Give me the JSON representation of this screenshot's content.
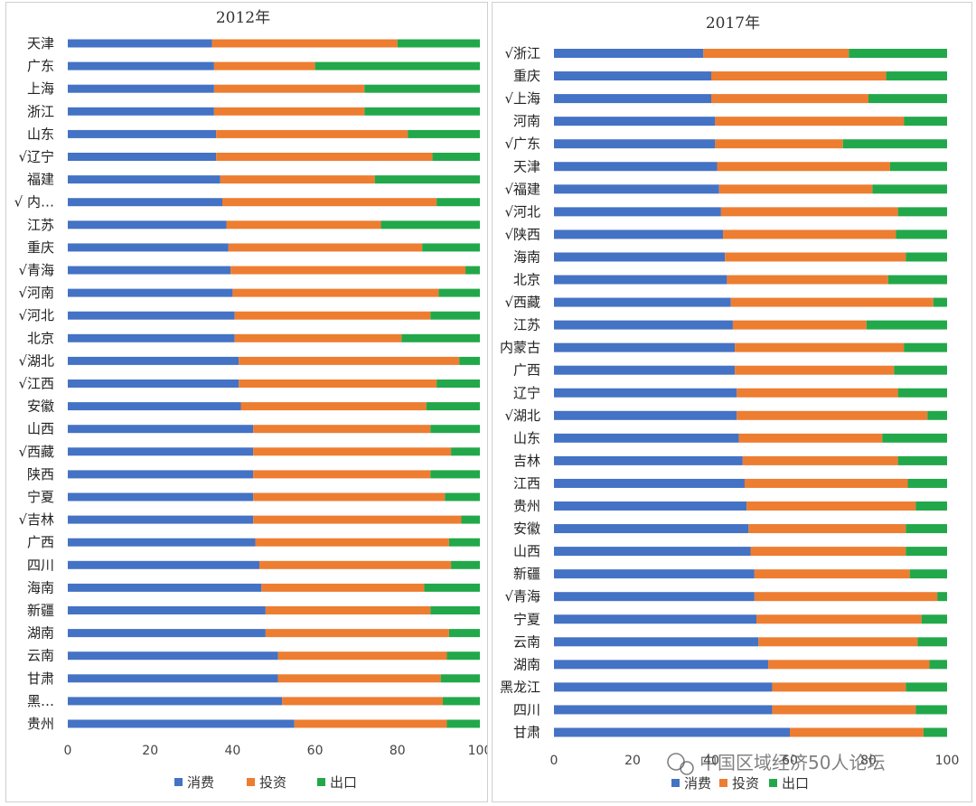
{
  "colors": {
    "consumption": "#4472C4",
    "investment": "#ED7D31",
    "export": "#22A84A"
  },
  "watermark": "中国区域经济50人论坛",
  "chart_data": [
    {
      "type": "bar",
      "stacked": true,
      "orientation": "horizontal",
      "title": "2012年",
      "xlim": [
        0,
        100
      ],
      "xticks": [
        "0",
        "20",
        "40",
        "60",
        "80",
        "100"
      ],
      "legend": [
        "消费",
        "投资",
        "出口"
      ],
      "legend_position": "bottom",
      "categories": [
        "天津",
        "广东",
        "上海",
        "浙江",
        "山东",
        "√辽宁",
        "福建",
        "√ 内…",
        "江苏",
        "重庆",
        "√青海",
        "√河南",
        "√河北",
        "北京",
        "√湖北",
        "√江西",
        "安徽",
        "山西",
        "√西藏",
        "陕西",
        "宁夏",
        "√吉林",
        "广西",
        "四川",
        "海南",
        "新疆",
        "湖南",
        "云南",
        "甘肃",
        "黑…",
        "贵州"
      ],
      "series": [
        {
          "name": "消费",
          "values": [
            35,
            35.5,
            35.5,
            35.5,
            36,
            36,
            37,
            37.5,
            38.5,
            39,
            39.5,
            40,
            40.5,
            40.5,
            41.5,
            41.5,
            42,
            45,
            45,
            45,
            45,
            45,
            45.5,
            46.5,
            47,
            48,
            48,
            51,
            51,
            52,
            55
          ]
        },
        {
          "name": "投资",
          "values": [
            45,
            24.5,
            36.5,
            36.5,
            46.5,
            52.5,
            37.5,
            52,
            37.5,
            47,
            57,
            50,
            47.5,
            40.5,
            53.5,
            48,
            45,
            43,
            48,
            43,
            46.5,
            50.5,
            47,
            46.5,
            39.5,
            40,
            44.5,
            41,
            39.5,
            39,
            37
          ]
        },
        {
          "name": "出口",
          "values": [
            20,
            40,
            28,
            28,
            17.5,
            11.5,
            25.5,
            10.5,
            24,
            14,
            3.5,
            10,
            12,
            19,
            5,
            10.5,
            13,
            12,
            7,
            12,
            8.5,
            4.5,
            7.5,
            7,
            13.5,
            12,
            7.5,
            8,
            9.5,
            9,
            8
          ]
        }
      ]
    },
    {
      "type": "bar",
      "stacked": true,
      "orientation": "horizontal",
      "title": "2017年",
      "xlim": [
        0,
        100
      ],
      "xticks": [
        "0",
        "20",
        "40",
        "60",
        "80",
        "100"
      ],
      "legend": [
        "消费",
        "投资",
        "出口"
      ],
      "legend_position": "bottom",
      "categories": [
        "√浙江",
        "重庆",
        "√上海",
        "河南",
        "√广东",
        "天津",
        "√福建",
        "√河北",
        "√陕西",
        "海南",
        "北京",
        "√西藏",
        "江苏",
        "内蒙古",
        "广西",
        "辽宁",
        "√湖北",
        "山东",
        "吉林",
        "江西",
        "贵州",
        "安徽",
        "山西",
        "新疆",
        "√青海",
        "宁夏",
        "云南",
        "湖南",
        "黑龙江",
        "四川",
        "甘肃"
      ],
      "series": [
        {
          "name": "消费",
          "values": [
            38,
            40,
            40,
            41,
            41,
            41.5,
            42,
            42.5,
            43,
            43.5,
            44,
            45,
            45.5,
            46,
            46,
            46.5,
            46.5,
            47,
            48,
            48.5,
            49,
            49.5,
            50,
            51,
            51,
            51.5,
            52,
            54.5,
            55.5,
            55.5,
            60
          ]
        },
        {
          "name": "投资",
          "values": [
            37,
            44.5,
            40,
            48,
            32.5,
            44,
            39,
            45,
            44,
            46,
            41,
            51.5,
            34,
            43,
            40.5,
            41,
            48.5,
            36.5,
            39.5,
            41.5,
            43,
            40,
            39.5,
            39.5,
            46.5,
            42,
            40.5,
            41,
            34,
            36.5,
            34
          ]
        },
        {
          "name": "出口",
          "values": [
            25,
            15.5,
            20,
            11,
            26.5,
            14.5,
            19,
            12.5,
            13,
            10.5,
            15,
            3.5,
            20.5,
            11,
            13.5,
            12.5,
            5,
            16.5,
            12.5,
            10,
            8,
            10.5,
            10.5,
            9.5,
            2.5,
            6.5,
            7.5,
            4.5,
            10.5,
            8,
            6
          ]
        }
      ]
    }
  ]
}
